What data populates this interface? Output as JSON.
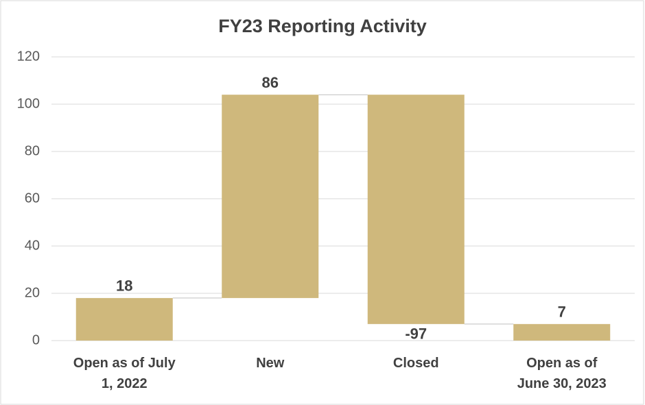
{
  "chart_data": {
    "type": "waterfall",
    "title": "FY23 Reporting Activity",
    "categories": [
      "Open as of July 1, 2022",
      "New",
      "Closed",
      "Open as of June 30, 2023"
    ],
    "values": [
      18,
      86,
      -97,
      7
    ],
    "measure": [
      "absolute",
      "relative",
      "relative",
      "absolute"
    ],
    "color": "#cfb87c",
    "ylim": [
      0,
      120
    ],
    "yticks": [
      0,
      20,
      40,
      60,
      80,
      100,
      120
    ],
    "grid": true
  }
}
